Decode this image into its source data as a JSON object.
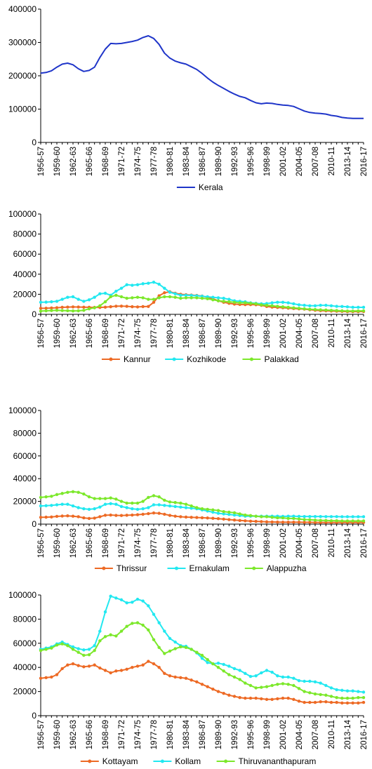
{
  "chart_data": [
    {
      "type": "line",
      "x": [
        "1956-57",
        "1957-58",
        "1958-59",
        "1959-60",
        "1960-61",
        "1961-62",
        "1962-63",
        "1963-64",
        "1964-65",
        "1965-66",
        "1966-67",
        "1967-68",
        "1968-69",
        "1969-70",
        "1970-71",
        "1971-72",
        "1972-73",
        "1973-74",
        "1974-75",
        "1975-76",
        "1976-77",
        "1977-78",
        "1978-79",
        "1979-80",
        "1980-81",
        "1981-82",
        "1982-83",
        "1983-84",
        "1984-85",
        "1985-86",
        "1986-87",
        "1987-88",
        "1988-89",
        "1989-90",
        "1990-91",
        "1991-92",
        "1992-93",
        "1993-94",
        "1994-95",
        "1995-96",
        "1996-97",
        "1997-98",
        "1998-99",
        "1999-00",
        "2000-01",
        "2001-02",
        "2002-03",
        "2003-04",
        "2004-05",
        "2005-06",
        "2006-07",
        "2007-08",
        "2008-09",
        "2009-10",
        "2010-11",
        "2011-12",
        "2012-13",
        "2013-14",
        "2014-15",
        "2015-16",
        "2016-17"
      ],
      "x_tick_labels": [
        "1956-57",
        "1959-60",
        "1962-63",
        "1965-66",
        "1968-69",
        "1971-72",
        "1974-75",
        "1977-78",
        "1980-81",
        "1983-84",
        "1986-87",
        "1989-90",
        "1992-93",
        "1995-96",
        "1998-99",
        "2001-02",
        "2004-05",
        "2007-08",
        "2010-11",
        "2013-14",
        "2016-17"
      ],
      "ylim": [
        0,
        400000
      ],
      "y_ticks": [
        "0",
        "100000",
        "200000",
        "300000",
        "400000"
      ],
      "legend_position": "bottom",
      "series": [
        {
          "name": "Kerala",
          "color": "#1f35c9",
          "marker": "none",
          "values": [
            208000,
            210000,
            215000,
            226000,
            235000,
            238000,
            233000,
            221000,
            213000,
            216000,
            226000,
            255000,
            280000,
            297000,
            296000,
            297000,
            300000,
            303000,
            307000,
            315000,
            320000,
            312000,
            294000,
            268000,
            253000,
            244000,
            239000,
            235000,
            227000,
            219000,
            207000,
            193000,
            181000,
            171000,
            162000,
            153000,
            145000,
            138000,
            134000,
            126000,
            119000,
            116000,
            118000,
            117000,
            114000,
            112000,
            111000,
            108000,
            101000,
            94000,
            90000,
            88000,
            87000,
            85000,
            81000,
            79000,
            75000,
            73000,
            72000,
            72000,
            72000
          ]
        }
      ]
    },
    {
      "type": "line",
      "x_tick_labels": [
        "1956-57",
        "1959-60",
        "1962-63",
        "1965-66",
        "1968-69",
        "1971-72",
        "1974-75",
        "1977-78",
        "1980-81",
        "1983-84",
        "1986-87",
        "1989-90",
        "1992-93",
        "1995-96",
        "1998-99",
        "2001-02",
        "2004-05",
        "2007-08",
        "2010-11",
        "2013-14",
        "2016-17"
      ],
      "ylim": [
        0,
        100000
      ],
      "y_ticks": [
        "0",
        "20000",
        "40000",
        "60000",
        "80000",
        "100000"
      ],
      "legend_position": "bottom",
      "series": [
        {
          "name": "Kannur",
          "color": "#ed6a25",
          "marker": "dot",
          "values": [
            6000,
            6100,
            6300,
            6600,
            7000,
            7200,
            7400,
            7300,
            7100,
            7000,
            6900,
            6900,
            7100,
            7600,
            8100,
            8200,
            8000,
            7600,
            7400,
            7700,
            7800,
            12000,
            18500,
            21500,
            22500,
            21000,
            20000,
            19500,
            19200,
            18800,
            18200,
            17000,
            15500,
            13500,
            12000,
            11000,
            10200,
            9800,
            9700,
            9700,
            9600,
            9000,
            7800,
            7200,
            6900,
            6600,
            6200,
            5800,
            5500,
            5200,
            4600,
            4100,
            3700,
            3500,
            3300,
            3100,
            2900,
            2700,
            2700,
            2700,
            2800
          ]
        },
        {
          "name": "Kozhikode",
          "color": "#22e8f0",
          "marker": "dot",
          "values": [
            12000,
            12200,
            12500,
            13000,
            15000,
            17000,
            17500,
            15000,
            13000,
            14500,
            17000,
            20500,
            21000,
            19000,
            23000,
            26000,
            29500,
            29000,
            29500,
            30500,
            31000,
            32000,
            30000,
            26000,
            22000,
            20500,
            19000,
            19000,
            18800,
            18500,
            18000,
            17500,
            17000,
            16500,
            16000,
            15000,
            13500,
            13000,
            12500,
            11500,
            11000,
            10500,
            10800,
            11500,
            12000,
            12000,
            11500,
            10500,
            9500,
            9000,
            8500,
            8500,
            9000,
            9000,
            8500,
            8000,
            7800,
            7500,
            7000,
            7000,
            7000
          ]
        },
        {
          "name": "Palakkad",
          "color": "#7ce82b",
          "marker": "dot",
          "values": [
            3200,
            3500,
            3800,
            4000,
            3800,
            3600,
            3400,
            3500,
            4000,
            5500,
            6500,
            8500,
            12500,
            17500,
            19000,
            17500,
            16000,
            16500,
            17000,
            16500,
            15000,
            15000,
            16500,
            17500,
            17500,
            17000,
            16000,
            16500,
            16500,
            16500,
            16000,
            15500,
            14500,
            13500,
            13000,
            12500,
            12000,
            11500,
            11500,
            11000,
            10500,
            9500,
            9000,
            8500,
            8000,
            7500,
            7000,
            6500,
            6000,
            5500,
            5000,
            4800,
            4500,
            4300,
            4000,
            3800,
            3500,
            3300,
            3300,
            3400,
            3500
          ]
        }
      ]
    },
    {
      "type": "line",
      "x_tick_labels": [
        "1956-57",
        "1959-60",
        "1962-63",
        "1965-66",
        "1968-69",
        "1971-72",
        "1974-75",
        "1977-78",
        "1980-81",
        "1983-84",
        "1986-87",
        "1989-90",
        "1992-93",
        "1995-96",
        "1998-99",
        "2001-02",
        "2004-05",
        "2007-08",
        "2010-11",
        "2013-14",
        "2016-17"
      ],
      "ylim": [
        0,
        100000
      ],
      "y_ticks": [
        "0",
        "20000",
        "40000",
        "60000",
        "80000",
        "100000"
      ],
      "legend_position": "bottom",
      "series": [
        {
          "name": "Thrissur",
          "color": "#ed6a25",
          "marker": "dot",
          "values": [
            6000,
            6100,
            6300,
            6800,
            7100,
            7300,
            7000,
            6500,
            5500,
            5000,
            5300,
            6500,
            7800,
            8000,
            7700,
            7600,
            7800,
            8000,
            8300,
            8700,
            9200,
            9800,
            9500,
            8700,
            7700,
            7000,
            6500,
            6200,
            6000,
            5800,
            5600,
            5400,
            5100,
            4800,
            4400,
            4000,
            3600,
            3200,
            2900,
            2600,
            2400,
            2200,
            2000,
            1900,
            1800,
            1700,
            1700,
            1700,
            1700,
            1600,
            1600,
            1500,
            1500,
            1500,
            1500,
            1500,
            1500,
            1500,
            1500,
            1500,
            1500
          ]
        },
        {
          "name": "Ernakulam",
          "color": "#22e8f0",
          "marker": "dot",
          "values": [
            16000,
            16200,
            16500,
            17000,
            17500,
            17500,
            16000,
            14500,
            13500,
            13000,
            13500,
            15000,
            17500,
            18000,
            17500,
            15500,
            14500,
            13500,
            13000,
            13500,
            14500,
            17000,
            17000,
            16500,
            16000,
            15500,
            15000,
            14500,
            14000,
            13500,
            12500,
            11500,
            10500,
            9500,
            9000,
            8500,
            8000,
            7500,
            7000,
            7000,
            7000,
            7000,
            7000,
            7000,
            7000,
            6800,
            7000,
            7000,
            6800,
            6700,
            6700,
            6700,
            6700,
            6600,
            6600,
            6600,
            6500,
            6500,
            6500,
            6500,
            6500
          ]
        },
        {
          "name": "Alappuzha",
          "color": "#7ce82b",
          "marker": "dot",
          "values": [
            23500,
            24000,
            24500,
            26000,
            27000,
            28000,
            28500,
            28000,
            26500,
            24000,
            22500,
            22500,
            22500,
            23000,
            22000,
            20000,
            18500,
            18500,
            18500,
            20000,
            23500,
            25000,
            24000,
            21000,
            19500,
            19000,
            18500,
            17500,
            16000,
            14500,
            13500,
            13000,
            12500,
            12000,
            11000,
            10500,
            10000,
            9000,
            8000,
            7500,
            7000,
            6500,
            6500,
            6000,
            5500,
            5500,
            5000,
            5000,
            4500,
            4000,
            3800,
            3500,
            3300,
            3200,
            3000,
            3000,
            2800,
            2800,
            2800,
            2800,
            2800
          ]
        }
      ]
    },
    {
      "type": "line",
      "x_tick_labels": [
        "1956-57",
        "1959-60",
        "1962-63",
        "1965-66",
        "1968-69",
        "1971-72",
        "1974-75",
        "1977-78",
        "1980-81",
        "1983-84",
        "1986-87",
        "1989-90",
        "1992-93",
        "1995-96",
        "1998-99",
        "2001-02",
        "2004-05",
        "2007-08",
        "2010-11",
        "2013-14",
        "2016-17"
      ],
      "ylim": [
        0,
        100000
      ],
      "y_ticks": [
        "0",
        "20000",
        "40000",
        "60000",
        "80000",
        "100000"
      ],
      "legend_position": "bottom",
      "series": [
        {
          "name": "Kottayam",
          "color": "#ed6a25",
          "marker": "dot",
          "values": [
            31000,
            31500,
            32000,
            34000,
            39000,
            42000,
            43000,
            41500,
            40500,
            41000,
            42000,
            39500,
            37500,
            35500,
            37000,
            37500,
            38500,
            40000,
            41000,
            42000,
            45000,
            43000,
            40000,
            35000,
            33000,
            32000,
            31500,
            31000,
            29500,
            28000,
            26000,
            24000,
            22000,
            20000,
            18500,
            17000,
            16000,
            15000,
            14500,
            14500,
            14500,
            14000,
            13500,
            13500,
            14000,
            14500,
            14500,
            13500,
            12000,
            11000,
            11000,
            11000,
            11500,
            11500,
            11000,
            11000,
            10500,
            10500,
            10500,
            10500,
            11000
          ]
        },
        {
          "name": "Kollam",
          "color": "#22e8f0",
          "marker": "dot",
          "values": [
            55000,
            56000,
            57000,
            59500,
            61000,
            59000,
            57000,
            55500,
            54500,
            55000,
            58000,
            70000,
            86000,
            99000,
            97500,
            96000,
            93500,
            94000,
            96500,
            95000,
            91000,
            84000,
            77000,
            70000,
            64000,
            61000,
            58000,
            57500,
            55000,
            52000,
            47500,
            44000,
            43000,
            43500,
            42500,
            41000,
            39000,
            37500,
            35000,
            32500,
            33000,
            35500,
            37500,
            36000,
            33000,
            32000,
            32000,
            31000,
            29000,
            28500,
            28500,
            28000,
            27000,
            25000,
            23000,
            21500,
            21000,
            20500,
            20500,
            20000,
            19500
          ]
        },
        {
          "name": "Thiruvananthapuram",
          "color": "#7ce82b",
          "marker": "dot",
          "values": [
            54000,
            55000,
            56000,
            58500,
            59500,
            58000,
            55000,
            52500,
            50000,
            50500,
            54000,
            62000,
            65500,
            67000,
            66000,
            70000,
            74000,
            76500,
            77000,
            75000,
            71000,
            63000,
            56500,
            51500,
            53500,
            55500,
            57000,
            56500,
            55000,
            52500,
            50000,
            46500,
            43000,
            40000,
            37000,
            34000,
            32000,
            30000,
            27000,
            25000,
            23000,
            23500,
            24000,
            25000,
            26000,
            26500,
            26000,
            25000,
            22500,
            20000,
            19000,
            18000,
            17500,
            17000,
            16000,
            15000,
            14500,
            14500,
            14500,
            15000,
            15000
          ]
        }
      ]
    }
  ]
}
